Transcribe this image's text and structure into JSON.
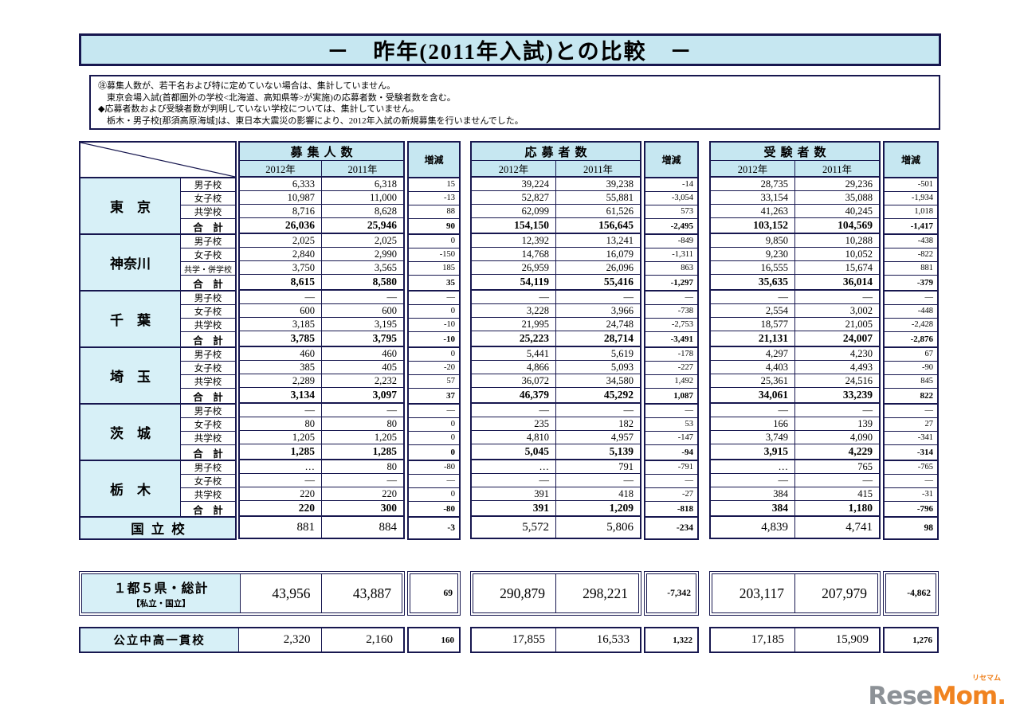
{
  "title": "－　昨年(2011年入試)との比較　－",
  "notes": [
    "㊟募集人数が、若干名および特に定めていない場合は、集計していません。",
    "　東京会場入試(首都圏外の学校<北海道、高知県等>が実施)の応募者数・受験者数を含む。",
    "◆応募者数および受験者数が判明していない学校については、集計していません。",
    "　栃木・男子校[那須高原海城]は、東日本大震災の影響により、2012年入試の新規募集を行いませんでした。"
  ],
  "columns": [
    {
      "key": "recruit",
      "title": "募集人数",
      "years": [
        "2012年",
        "2011年"
      ],
      "diff": "増減"
    },
    {
      "key": "applicants",
      "title": "応募者数",
      "years": [
        "2012年",
        "2011年"
      ],
      "diff": "増減"
    },
    {
      "key": "examinees",
      "title": "受験者数",
      "years": [
        "2012年",
        "2011年"
      ],
      "diff": "増減"
    }
  ],
  "table": {
    "groups": [
      {
        "prefecture": "東　京",
        "rows": [
          {
            "label": "男子校",
            "recruit": [
              "6,333",
              "6,318",
              "15"
            ],
            "applicants": [
              "39,224",
              "39,238",
              "-14"
            ],
            "examinees": [
              "28,735",
              "29,236",
              "-501"
            ]
          },
          {
            "label": "女子校",
            "recruit": [
              "10,987",
              "11,000",
              "-13"
            ],
            "applicants": [
              "52,827",
              "55,881",
              "-3,054"
            ],
            "examinees": [
              "33,154",
              "35,088",
              "-1,934"
            ]
          },
          {
            "label": "共学校",
            "recruit": [
              "8,716",
              "8,628",
              "88"
            ],
            "applicants": [
              "62,099",
              "61,526",
              "573"
            ],
            "examinees": [
              "41,263",
              "40,245",
              "1,018"
            ]
          },
          {
            "label": "合　計",
            "total": true,
            "recruit": [
              "26,036",
              "25,946",
              "90"
            ],
            "applicants": [
              "154,150",
              "156,645",
              "-2,495"
            ],
            "examinees": [
              "103,152",
              "104,569",
              "-1,417"
            ]
          }
        ]
      },
      {
        "prefecture": "神奈川",
        "rows": [
          {
            "label": "男子校",
            "recruit": [
              "2,025",
              "2,025",
              "0"
            ],
            "applicants": [
              "12,392",
              "13,241",
              "-849"
            ],
            "examinees": [
              "9,850",
              "10,288",
              "-438"
            ]
          },
          {
            "label": "女子校",
            "recruit": [
              "2,840",
              "2,990",
              "-150"
            ],
            "applicants": [
              "14,768",
              "16,079",
              "-1,311"
            ],
            "examinees": [
              "9,230",
              "10,052",
              "-822"
            ]
          },
          {
            "label": "共学・併学校",
            "recruit": [
              "3,750",
              "3,565",
              "185"
            ],
            "applicants": [
              "26,959",
              "26,096",
              "863"
            ],
            "examinees": [
              "16,555",
              "15,674",
              "881"
            ]
          },
          {
            "label": "合　計",
            "total": true,
            "recruit": [
              "8,615",
              "8,580",
              "35"
            ],
            "applicants": [
              "54,119",
              "55,416",
              "-1,297"
            ],
            "examinees": [
              "35,635",
              "36,014",
              "-379"
            ]
          }
        ]
      },
      {
        "prefecture": "千　葉",
        "rows": [
          {
            "label": "男子校",
            "recruit": [
              "—",
              "—",
              "—"
            ],
            "applicants": [
              "—",
              "—",
              "—"
            ],
            "examinees": [
              "—",
              "—",
              "—"
            ]
          },
          {
            "label": "女子校",
            "recruit": [
              "600",
              "600",
              "0"
            ],
            "applicants": [
              "3,228",
              "3,966",
              "-738"
            ],
            "examinees": [
              "2,554",
              "3,002",
              "-448"
            ]
          },
          {
            "label": "共学校",
            "recruit": [
              "3,185",
              "3,195",
              "-10"
            ],
            "applicants": [
              "21,995",
              "24,748",
              "-2,753"
            ],
            "examinees": [
              "18,577",
              "21,005",
              "-2,428"
            ]
          },
          {
            "label": "合　計",
            "total": true,
            "recruit": [
              "3,785",
              "3,795",
              "-10"
            ],
            "applicants": [
              "25,223",
              "28,714",
              "-3,491"
            ],
            "examinees": [
              "21,131",
              "24,007",
              "-2,876"
            ]
          }
        ]
      },
      {
        "prefecture": "埼　玉",
        "rows": [
          {
            "label": "男子校",
            "recruit": [
              "460",
              "460",
              "0"
            ],
            "applicants": [
              "5,441",
              "5,619",
              "-178"
            ],
            "examinees": [
              "4,297",
              "4,230",
              "67"
            ]
          },
          {
            "label": "女子校",
            "recruit": [
              "385",
              "405",
              "-20"
            ],
            "applicants": [
              "4,866",
              "5,093",
              "-227"
            ],
            "examinees": [
              "4,403",
              "4,493",
              "-90"
            ]
          },
          {
            "label": "共学校",
            "recruit": [
              "2,289",
              "2,232",
              "57"
            ],
            "applicants": [
              "36,072",
              "34,580",
              "1,492"
            ],
            "examinees": [
              "25,361",
              "24,516",
              "845"
            ]
          },
          {
            "label": "合　計",
            "total": true,
            "recruit": [
              "3,134",
              "3,097",
              "37"
            ],
            "applicants": [
              "46,379",
              "45,292",
              "1,087"
            ],
            "examinees": [
              "34,061",
              "33,239",
              "822"
            ]
          }
        ]
      },
      {
        "prefecture": "茨　城",
        "rows": [
          {
            "label": "男子校",
            "recruit": [
              "—",
              "—",
              "—"
            ],
            "applicants": [
              "—",
              "—",
              "—"
            ],
            "examinees": [
              "—",
              "—",
              "—"
            ]
          },
          {
            "label": "女子校",
            "recruit": [
              "80",
              "80",
              "0"
            ],
            "applicants": [
              "235",
              "182",
              "53"
            ],
            "examinees": [
              "166",
              "139",
              "27"
            ]
          },
          {
            "label": "共学校",
            "recruit": [
              "1,205",
              "1,205",
              "0"
            ],
            "applicants": [
              "4,810",
              "4,957",
              "-147"
            ],
            "examinees": [
              "3,749",
              "4,090",
              "-341"
            ]
          },
          {
            "label": "合　計",
            "total": true,
            "recruit": [
              "1,285",
              "1,285",
              "0"
            ],
            "applicants": [
              "5,045",
              "5,139",
              "-94"
            ],
            "examinees": [
              "3,915",
              "4,229",
              "-314"
            ]
          }
        ]
      },
      {
        "prefecture": "栃　木",
        "rows": [
          {
            "label": "男子校",
            "recruit": [
              "…",
              "80",
              "-80"
            ],
            "applicants": [
              "…",
              "791",
              "-791"
            ],
            "examinees": [
              "…",
              "765",
              "-765"
            ]
          },
          {
            "label": "女子校",
            "recruit": [
              "—",
              "—",
              "—"
            ],
            "applicants": [
              "—",
              "—",
              "—"
            ],
            "examinees": [
              "—",
              "—",
              "—"
            ]
          },
          {
            "label": "共学校",
            "recruit": [
              "220",
              "220",
              "0"
            ],
            "applicants": [
              "391",
              "418",
              "-27"
            ],
            "examinees": [
              "384",
              "415",
              "-31"
            ]
          },
          {
            "label": "合　計",
            "total": true,
            "recruit": [
              "220",
              "300",
              "-80"
            ],
            "applicants": [
              "391",
              "1,209",
              "-818"
            ],
            "examinees": [
              "384",
              "1,180",
              "-796"
            ]
          }
        ]
      }
    ],
    "national": {
      "label": "国立校",
      "recruit": [
        "881",
        "884",
        "-3"
      ],
      "applicants": [
        "5,572",
        "5,806",
        "-234"
      ],
      "examinees": [
        "4,839",
        "4,741",
        "98"
      ]
    },
    "grand_total": {
      "label": "１都５県・総計",
      "sublabel": "【私立・国立】",
      "recruit": [
        "43,956",
        "43,887",
        "69"
      ],
      "applicants": [
        "290,879",
        "298,221",
        "-7,342"
      ],
      "examinees": [
        "203,117",
        "207,979",
        "-4,862"
      ]
    },
    "public_schools": {
      "label": "公立中高一貫校",
      "recruit": [
        "2,320",
        "2,160",
        "160"
      ],
      "applicants": [
        "17,855",
        "16,533",
        "1,322"
      ],
      "examinees": [
        "17,185",
        "15,909",
        "1,276"
      ]
    }
  },
  "colors": {
    "border": "#17174f",
    "header_blue": "#c6e7f1",
    "label_cyan": "#d7f0f7",
    "logo_gray": "#8d9297",
    "logo_orange": "#f08320"
  },
  "logo": {
    "gray": "Rese",
    "orange": "Mom.",
    "kana": "リセマム"
  }
}
